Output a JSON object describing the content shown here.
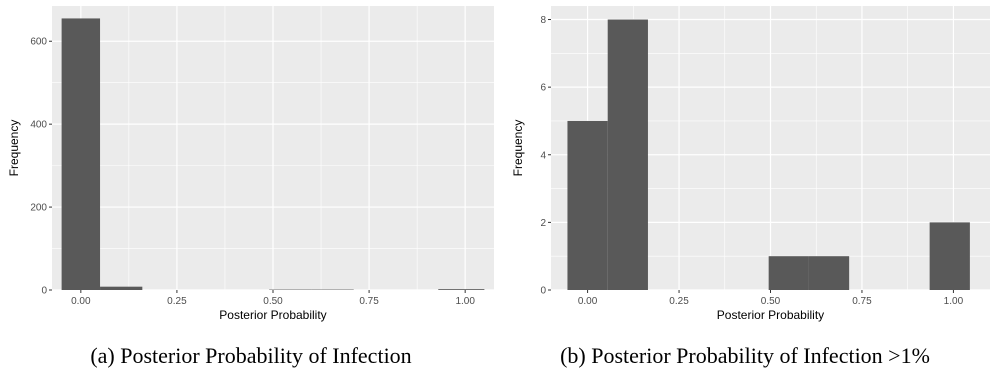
{
  "chart_data": [
    {
      "type": "bar",
      "subplot": "a",
      "caption": "(a) Posterior Probability of Infection",
      "title": "",
      "xlabel": "Posterior Probability",
      "ylabel": "Frequency",
      "xlim": [
        -0.075,
        1.075
      ],
      "ylim": [
        0,
        685
      ],
      "x_ticks": [
        0,
        0.25,
        0.5,
        0.75,
        1
      ],
      "x_tick_labels": [
        "0.00",
        "0.25",
        "0.50",
        "0.75",
        "1.00"
      ],
      "y_ticks": [
        0,
        200,
        400,
        600
      ],
      "y_tick_labels": [
        "0",
        "200",
        "400",
        "600"
      ],
      "bins": [
        {
          "x0": -0.05,
          "x1": 0.05,
          "value": 655
        },
        {
          "x0": 0.05,
          "x1": 0.16,
          "value": 8
        },
        {
          "x0": 0.16,
          "x1": 0.27,
          "value": 0
        },
        {
          "x0": 0.27,
          "x1": 0.38,
          "value": 0
        },
        {
          "x0": 0.38,
          "x1": 0.49,
          "value": 0
        },
        {
          "x0": 0.49,
          "x1": 0.6,
          "value": 1
        },
        {
          "x0": 0.6,
          "x1": 0.71,
          "value": 1
        },
        {
          "x0": 0.71,
          "x1": 0.82,
          "value": 0
        },
        {
          "x0": 0.82,
          "x1": 0.93,
          "value": 0
        },
        {
          "x0": 0.93,
          "x1": 1.05,
          "value": 2
        }
      ],
      "bar_color": "#595959",
      "panel_bg": "#ebebeb",
      "grid": true
    },
    {
      "type": "bar",
      "subplot": "b",
      "caption": "(b) Posterior Probability of Infection >1%",
      "title": "",
      "xlabel": "Posterior Probability",
      "ylabel": "Frequency",
      "xlim": [
        -0.1,
        1.1
      ],
      "ylim": [
        0,
        8.4
      ],
      "x_ticks": [
        0,
        0.25,
        0.5,
        0.75,
        1
      ],
      "x_tick_labels": [
        "0.00",
        "0.25",
        "0.50",
        "0.75",
        "1.00"
      ],
      "y_ticks": [
        0,
        2,
        4,
        6,
        8
      ],
      "y_tick_labels": [
        "0",
        "2",
        "4",
        "6",
        "8"
      ],
      "bins": [
        {
          "x0": -0.055,
          "x1": 0.055,
          "value": 5
        },
        {
          "x0": 0.055,
          "x1": 0.165,
          "value": 8
        },
        {
          "x0": 0.165,
          "x1": 0.275,
          "value": 0
        },
        {
          "x0": 0.275,
          "x1": 0.385,
          "value": 0
        },
        {
          "x0": 0.385,
          "x1": 0.495,
          "value": 0
        },
        {
          "x0": 0.495,
          "x1": 0.605,
          "value": 1
        },
        {
          "x0": 0.605,
          "x1": 0.715,
          "value": 1
        },
        {
          "x0": 0.715,
          "x1": 0.825,
          "value": 0
        },
        {
          "x0": 0.825,
          "x1": 0.935,
          "value": 0
        },
        {
          "x0": 0.935,
          "x1": 1.045,
          "value": 2
        }
      ],
      "bar_color": "#595959",
      "panel_bg": "#ebebeb",
      "grid": true
    }
  ]
}
